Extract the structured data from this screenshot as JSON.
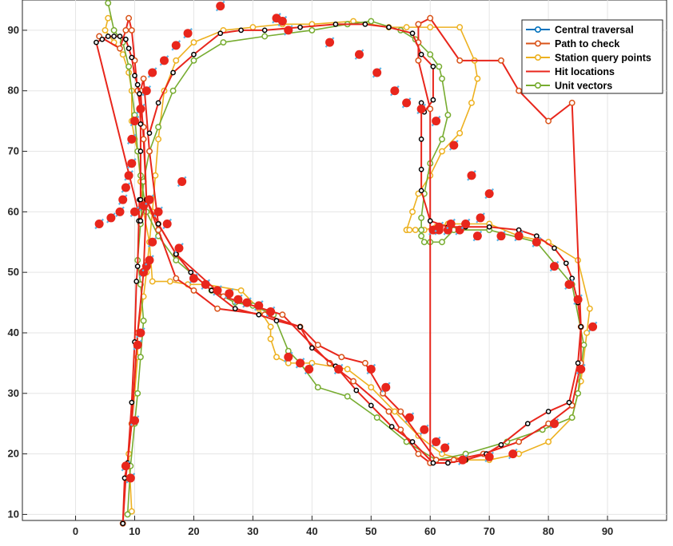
{
  "chart_data": {
    "type": "line",
    "xlim": [
      -9,
      100
    ],
    "ylim": [
      9,
      95
    ],
    "x_ticks": [
      0,
      10,
      20,
      30,
      40,
      50,
      60,
      70,
      80,
      90
    ],
    "y_ticks": [
      10,
      20,
      30,
      40,
      50,
      60,
      70,
      80,
      90
    ],
    "grid": true,
    "legend_location": "top-right",
    "legend": [
      {
        "label": "Central traversal",
        "color": "#0072BD",
        "marker": "circle"
      },
      {
        "label": "Path to check",
        "color": "#D95319",
        "marker": "circle"
      },
      {
        "label": "Station query points",
        "color": "#EDB120",
        "marker": "circle"
      },
      {
        "label": "Hit locations",
        "color": "#E8261C",
        "marker": "line"
      },
      {
        "label": "Unit vectors",
        "color": "#77AC30",
        "marker": "circle"
      }
    ],
    "series": [
      {
        "name": "Path to check",
        "color": "#E8261C",
        "marker_color": "#D95319",
        "x": [
          8,
          8.5,
          9.5,
          10.5,
          11.5,
          12,
          11.5,
          11,
          11.5,
          12.5,
          14,
          17,
          25,
          35,
          43,
          47,
          53,
          55,
          58,
          60,
          60,
          58,
          58,
          58,
          60,
          65,
          72,
          75,
          80,
          84,
          85.5,
          85.5,
          84,
          80,
          75,
          69,
          64,
          61,
          55,
          52,
          49,
          45,
          41,
          38,
          32,
          24,
          20,
          17,
          14,
          12,
          11.5,
          10.5,
          10,
          9.5,
          9,
          8.5,
          7.5,
          4
        ],
        "y": [
          8.5,
          16,
          25,
          40,
          50,
          62,
          72,
          80,
          82,
          70,
          58,
          53,
          46,
          43,
          35,
          32,
          27,
          24,
          20,
          18.5,
          77,
          85,
          88,
          91,
          92,
          85,
          85,
          80,
          75,
          78,
          41,
          35,
          28,
          25,
          22,
          20,
          19,
          19,
          27,
          30,
          35,
          36,
          38,
          41,
          43,
          44,
          47,
          49,
          57,
          62,
          74,
          80,
          85,
          90,
          92,
          90,
          87,
          89
        ]
      },
      {
        "name": "Central traversal",
        "color": "#E8261C",
        "marker_color": "#000000",
        "x": [
          8,
          8.3,
          8.8,
          9.5,
          10,
          10.3,
          10.5,
          10.7,
          10.8,
          11,
          11,
          11,
          10.8,
          10.5,
          10,
          9.5,
          9,
          8.5,
          7.5,
          6.5,
          5.5,
          4.5,
          3.5,
          11,
          12,
          14,
          17,
          19.5,
          23,
          27,
          31,
          34,
          38,
          40,
          44,
          47.5,
          50,
          53.5,
          57,
          60.5,
          63,
          66,
          69.5,
          72,
          76.5,
          80,
          83.5,
          85,
          85.5,
          85,
          84,
          83,
          81,
          78,
          75,
          70,
          66,
          63,
          60,
          58.5,
          58.5,
          58.5,
          58.5,
          59,
          60.5,
          60.5,
          58.5,
          57,
          53,
          49,
          44,
          38,
          32,
          28,
          24.5,
          20,
          16.5,
          14,
          12.5
        ],
        "y": [
          8.5,
          16,
          18.5,
          28.5,
          38.5,
          48.5,
          51,
          58.5,
          62,
          62,
          70,
          74.5,
          79.5,
          81,
          82.5,
          85.5,
          87,
          88.5,
          89,
          89,
          89,
          88.5,
          88,
          58.5,
          62,
          58,
          53,
          50,
          47,
          44,
          43,
          42,
          41,
          37.5,
          34.5,
          30.5,
          28,
          24.5,
          22,
          18.5,
          18.5,
          19,
          20,
          21.5,
          25,
          27,
          28.5,
          35,
          41,
          45,
          49,
          51.5,
          54,
          56,
          57,
          57.5,
          57.5,
          57.5,
          58.5,
          63.5,
          67,
          72,
          78,
          76.5,
          78.5,
          84,
          86,
          89.5,
          90.5,
          91,
          91,
          90.5,
          90,
          90,
          89.5,
          86,
          83,
          78,
          73
        ]
      },
      {
        "name": "Station query points",
        "color": "#EDB120",
        "x": [
          9.5,
          9,
          9.5,
          10,
          10.5,
          10.5,
          11.5,
          12,
          12.5,
          13,
          13.5,
          14,
          15,
          17,
          20,
          25,
          30,
          35,
          40,
          47,
          53,
          56,
          60,
          65,
          67.5,
          68,
          67,
          65,
          62,
          60,
          58,
          57,
          56,
          56,
          56.5,
          57.5,
          59,
          61,
          63,
          66,
          70,
          75,
          80,
          85,
          87,
          86.5,
          85.5,
          84,
          80,
          75,
          70,
          66,
          62,
          58,
          54,
          50,
          46,
          40,
          36,
          34,
          33,
          33,
          31,
          28,
          22,
          19,
          16,
          13,
          12.5,
          11.5,
          11,
          10.5,
          10,
          9.5,
          9.5,
          9,
          8,
          6.5,
          5,
          5.5
        ],
        "y": [
          10.5,
          20,
          25,
          30,
          36,
          40,
          46,
          50,
          55,
          60,
          66,
          72,
          80,
          85,
          88,
          90,
          90.5,
          91,
          91,
          91.5,
          90.5,
          90.5,
          90.5,
          90.5,
          85,
          82,
          78,
          73,
          70,
          66,
          63,
          60,
          57,
          57,
          57,
          57,
          57,
          57.5,
          58,
          58,
          58,
          56,
          55,
          52,
          44,
          40,
          32,
          26,
          22,
          20,
          19,
          19,
          20,
          23,
          27,
          31,
          34,
          35,
          35,
          36,
          39,
          41,
          44,
          47,
          48,
          48,
          48.5,
          48.5,
          55,
          60,
          65,
          70,
          72,
          75,
          80,
          83,
          86,
          88,
          90,
          92
        ]
      },
      {
        "name": "Unit vectors",
        "color": "#77AC30",
        "x": [
          8.8,
          9.3,
          10,
          10.5,
          11,
          11.5,
          11,
          10.5,
          11,
          11.5,
          12.5,
          14,
          16.5,
          20,
          25,
          32,
          40,
          46,
          50,
          55,
          57.5,
          60,
          61.5,
          62,
          63,
          62,
          60,
          59,
          58.5,
          58.5,
          58.5,
          59,
          60,
          62,
          64,
          70,
          78,
          84,
          86,
          85,
          84,
          79,
          73,
          66,
          61,
          56,
          51,
          46,
          41,
          38,
          36,
          33.5,
          30,
          27,
          23,
          17,
          14,
          12,
          11,
          10.5,
          10,
          9,
          8,
          6.5,
          5.5
        ],
        "y": [
          10,
          18,
          25,
          30,
          36,
          42,
          48,
          52,
          58,
          65,
          70,
          74,
          80,
          85,
          88,
          89,
          90,
          91,
          91.5,
          90,
          88.5,
          86,
          84,
          82,
          76,
          72,
          68,
          63,
          59,
          57,
          56,
          55,
          55,
          55,
          57,
          57,
          55,
          48,
          38,
          30,
          26,
          24,
          22,
          20,
          19,
          22,
          26,
          29.5,
          31,
          35,
          37,
          43,
          44.5,
          45,
          47,
          52,
          56,
          60,
          66,
          70,
          76,
          84,
          88,
          90,
          94.5
        ]
      }
    ],
    "hit_locations": {
      "x": [
        8.5,
        9.3,
        10,
        10.5,
        11,
        11.5,
        12,
        12.5,
        13,
        14,
        15.5,
        17.5,
        20,
        22,
        24,
        26,
        27.5,
        29,
        31,
        33,
        36,
        38,
        39.5,
        44.5,
        50,
        52.5,
        56.5,
        59,
        61,
        62.5,
        65.5,
        70,
        74,
        81,
        85.5,
        87.5,
        85,
        83.5,
        81,
        78,
        75,
        72,
        68,
        65,
        63,
        61.5,
        60.5,
        61.5,
        63.5,
        66,
        68.5,
        70,
        67,
        64,
        61,
        58.5,
        56,
        54,
        51,
        48,
        43,
        36,
        35,
        34,
        24.5,
        19,
        17,
        15,
        13,
        12,
        11,
        10,
        9.5,
        9.5,
        9,
        8.5,
        8,
        7.5,
        6,
        4,
        10,
        11.5,
        12.5,
        18
      ],
      "y": [
        18,
        16,
        25.5,
        38,
        40,
        50,
        51,
        52,
        55,
        60,
        58,
        54,
        49,
        48,
        47,
        46.5,
        45.5,
        45,
        44.5,
        43.5,
        36,
        35,
        34,
        34,
        34,
        31,
        26,
        24,
        22,
        21,
        19,
        19.5,
        20,
        25,
        34,
        41,
        45.5,
        48,
        51,
        55,
        56,
        56,
        56,
        57,
        57,
        57,
        57,
        57.5,
        58,
        58,
        59,
        63,
        66,
        71,
        75,
        77,
        78,
        80,
        83,
        86,
        88,
        90,
        91.5,
        92,
        94,
        89.5,
        87.5,
        85,
        83,
        80,
        77,
        75,
        72,
        68,
        66,
        64,
        62,
        60,
        59,
        58,
        60,
        61,
        62,
        65
      ]
    },
    "hit_labels": [
      "",
      "",
      "",
      "",
      "",
      "",
      "",
      "",
      "",
      ""
    ]
  }
}
